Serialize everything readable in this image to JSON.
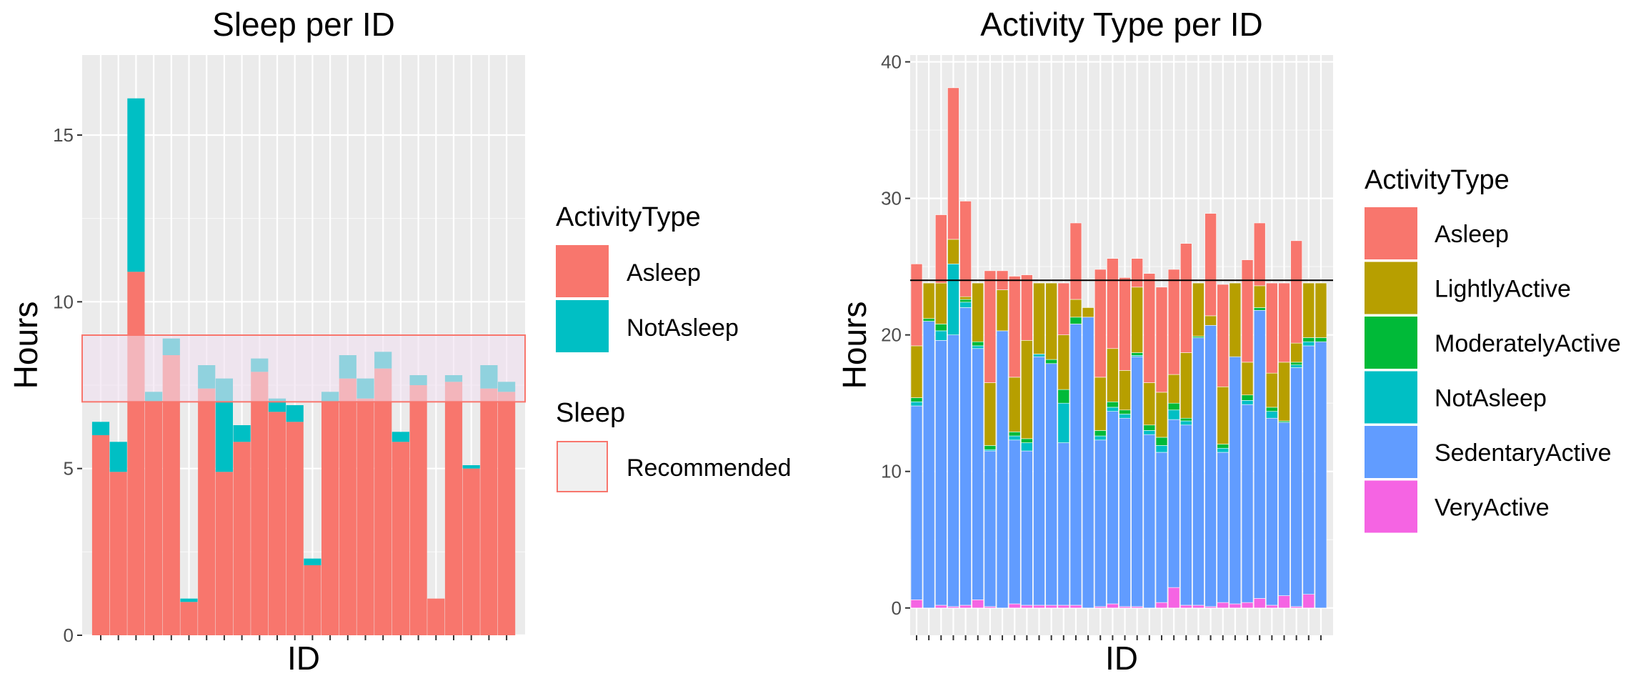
{
  "chart_data": [
    {
      "type": "bar",
      "stacked": true,
      "title": "Sleep per ID",
      "xlabel": "ID",
      "ylabel": "Hours",
      "ylim": [
        0,
        17.4
      ],
      "yticks": [
        0,
        5,
        10,
        15
      ],
      "x_tick_labels_shown": false,
      "grid": true,
      "legend_position": "right",
      "legend_title": "ActivityType",
      "series": [
        {
          "name": "Asleep",
          "color": "#F8766D",
          "values": [
            6.0,
            4.9,
            10.9,
            7.0,
            8.4,
            1.0,
            7.4,
            4.9,
            5.8,
            7.9,
            6.7,
            6.4,
            2.1,
            7.0,
            7.7,
            7.1,
            8.0,
            5.8,
            7.5,
            1.1,
            7.6,
            5.0,
            7.4,
            7.3
          ]
        },
        {
          "name": "NotAsleep",
          "color": "#00BFC4",
          "values": [
            0.4,
            0.9,
            5.2,
            0.3,
            0.5,
            0.1,
            0.7,
            2.8,
            0.5,
            0.4,
            0.4,
            0.5,
            0.2,
            0.3,
            0.7,
            0.6,
            0.5,
            0.3,
            0.3,
            0.0,
            0.2,
            0.1,
            0.7,
            0.3
          ]
        }
      ],
      "recommended_band": {
        "legend_title": "Sleep",
        "label": "Recommended",
        "ymin": 7,
        "ymax": 9,
        "fill": "#f0e0f0",
        "stroke": "#F8766D"
      }
    },
    {
      "type": "bar",
      "stacked": true,
      "title": "Activity Type per ID",
      "xlabel": "ID",
      "ylabel": "Hours",
      "ylim": [
        -2,
        40.5
      ],
      "yticks": [
        0,
        10,
        20,
        30,
        40
      ],
      "x_tick_labels_shown": false,
      "grid": true,
      "legend_position": "right",
      "legend_title": "ActivityType",
      "reference_line": 24,
      "stack_order_bottom_to_top": [
        "VeryActive",
        "SedentaryActive",
        "NotAsleep",
        "ModeratelyActive",
        "LightlyActive",
        "Asleep"
      ],
      "legend": [
        {
          "name": "Asleep",
          "color": "#F8766D"
        },
        {
          "name": "LightlyActive",
          "color": "#B79F00"
        },
        {
          "name": "ModeratelyActive",
          "color": "#00BA38"
        },
        {
          "name": "NotAsleep",
          "color": "#00BFC4"
        },
        {
          "name": "SedentaryActive",
          "color": "#619CFF"
        },
        {
          "name": "VeryActive",
          "color": "#F564E3"
        }
      ],
      "bars": [
        {
          "VeryActive": 0.6,
          "SedentaryActive": 14.2,
          "NotAsleep": 0.3,
          "ModeratelyActive": 0.3,
          "LightlyActive": 3.8,
          "Asleep": 6.0
        },
        {
          "VeryActive": 0.0,
          "SedentaryActive": 21.0,
          "NotAsleep": 0.0,
          "ModeratelyActive": 0.2,
          "LightlyActive": 2.6,
          "Asleep": 0.0
        },
        {
          "VeryActive": 0.2,
          "SedentaryActive": 19.4,
          "NotAsleep": 0.7,
          "ModeratelyActive": 0.5,
          "LightlyActive": 3.0,
          "Asleep": 5.0
        },
        {
          "VeryActive": 0.1,
          "SedentaryActive": 19.9,
          "NotAsleep": 5.2,
          "ModeratelyActive": 0.0,
          "LightlyActive": 1.8,
          "Asleep": 11.1
        },
        {
          "VeryActive": 0.2,
          "SedentaryActive": 21.8,
          "NotAsleep": 0.4,
          "ModeratelyActive": 0.2,
          "LightlyActive": 0.2,
          "Asleep": 7.0
        },
        {
          "VeryActive": 0.6,
          "SedentaryActive": 18.4,
          "NotAsleep": 0.2,
          "ModeratelyActive": 0.3,
          "LightlyActive": 4.3,
          "Asleep": 0.0
        },
        {
          "VeryActive": 0.1,
          "SedentaryActive": 11.4,
          "NotAsleep": 0.1,
          "ModeratelyActive": 0.3,
          "LightlyActive": 4.6,
          "Asleep": 8.2
        },
        {
          "VeryActive": 0.0,
          "SedentaryActive": 20.3,
          "NotAsleep": 0.0,
          "ModeratelyActive": 0.0,
          "LightlyActive": 3.0,
          "Asleep": 1.4
        },
        {
          "VeryActive": 0.3,
          "SedentaryActive": 12.0,
          "NotAsleep": 0.3,
          "ModeratelyActive": 0.3,
          "LightlyActive": 4.0,
          "Asleep": 7.4
        },
        {
          "VeryActive": 0.2,
          "SedentaryActive": 11.3,
          "NotAsleep": 0.6,
          "ModeratelyActive": 0.3,
          "LightlyActive": 7.2,
          "Asleep": 4.8
        },
        {
          "VeryActive": 0.2,
          "SedentaryActive": 18.2,
          "NotAsleep": 0.2,
          "ModeratelyActive": 0.0,
          "LightlyActive": 5.2,
          "Asleep": 0.0
        },
        {
          "VeryActive": 0.2,
          "SedentaryActive": 17.7,
          "NotAsleep": 0.0,
          "ModeratelyActive": 0.3,
          "LightlyActive": 5.6,
          "Asleep": 0.0
        },
        {
          "VeryActive": 0.2,
          "SedentaryActive": 11.9,
          "NotAsleep": 2.9,
          "ModeratelyActive": 1.0,
          "LightlyActive": 4.0,
          "Asleep": 3.8
        },
        {
          "VeryActive": 0.2,
          "SedentaryActive": 20.6,
          "NotAsleep": 0.0,
          "ModeratelyActive": 0.5,
          "LightlyActive": 1.3,
          "Asleep": 5.6
        },
        {
          "VeryActive": 0.0,
          "SedentaryActive": 21.3,
          "NotAsleep": 0.0,
          "ModeratelyActive": 0.0,
          "LightlyActive": 0.7,
          "Asleep": 0.0
        },
        {
          "VeryActive": 0.1,
          "SedentaryActive": 12.2,
          "NotAsleep": 0.3,
          "ModeratelyActive": 0.4,
          "LightlyActive": 3.9,
          "Asleep": 7.9
        },
        {
          "VeryActive": 0.3,
          "SedentaryActive": 14.1,
          "NotAsleep": 0.3,
          "ModeratelyActive": 0.4,
          "LightlyActive": 3.9,
          "Asleep": 6.6
        },
        {
          "VeryActive": 0.1,
          "SedentaryActive": 13.8,
          "NotAsleep": 0.3,
          "ModeratelyActive": 0.3,
          "LightlyActive": 2.9,
          "Asleep": 6.8
        },
        {
          "VeryActive": 0.1,
          "SedentaryActive": 18.3,
          "NotAsleep": 0.1,
          "ModeratelyActive": 0.2,
          "LightlyActive": 4.8,
          "Asleep": 2.1
        },
        {
          "VeryActive": 0.0,
          "SedentaryActive": 12.7,
          "NotAsleep": 0.3,
          "ModeratelyActive": 0.4,
          "LightlyActive": 3.1,
          "Asleep": 8.0
        },
        {
          "VeryActive": 0.4,
          "SedentaryActive": 11.0,
          "NotAsleep": 0.5,
          "ModeratelyActive": 0.6,
          "LightlyActive": 3.3,
          "Asleep": 7.7
        },
        {
          "VeryActive": 1.5,
          "SedentaryActive": 12.3,
          "NotAsleep": 0.7,
          "ModeratelyActive": 0.5,
          "LightlyActive": 2.1,
          "Asleep": 7.7
        },
        {
          "VeryActive": 0.2,
          "SedentaryActive": 13.2,
          "NotAsleep": 0.3,
          "ModeratelyActive": 0.2,
          "LightlyActive": 4.8,
          "Asleep": 8.0
        },
        {
          "VeryActive": 0.2,
          "SedentaryActive": 19.6,
          "NotAsleep": 0.0,
          "ModeratelyActive": 0.1,
          "LightlyActive": 3.9,
          "Asleep": 0.0
        },
        {
          "VeryActive": 0.1,
          "SedentaryActive": 20.6,
          "NotAsleep": 0.0,
          "ModeratelyActive": 0.0,
          "LightlyActive": 0.7,
          "Asleep": 7.5
        },
        {
          "VeryActive": 0.4,
          "SedentaryActive": 11.0,
          "NotAsleep": 0.3,
          "ModeratelyActive": 0.3,
          "LightlyActive": 4.2,
          "Asleep": 7.5
        },
        {
          "VeryActive": 0.3,
          "SedentaryActive": 18.1,
          "NotAsleep": 0.0,
          "ModeratelyActive": 0.0,
          "LightlyActive": 5.4,
          "Asleep": 0.0
        },
        {
          "VeryActive": 0.4,
          "SedentaryActive": 14.5,
          "NotAsleep": 0.3,
          "ModeratelyActive": 0.4,
          "LightlyActive": 2.4,
          "Asleep": 7.5
        },
        {
          "VeryActive": 0.7,
          "SedentaryActive": 21.1,
          "NotAsleep": 0.0,
          "ModeratelyActive": 0.2,
          "LightlyActive": 1.6,
          "Asleep": 4.6
        },
        {
          "VeryActive": 0.2,
          "SedentaryActive": 13.7,
          "NotAsleep": 0.5,
          "ModeratelyActive": 0.3,
          "LightlyActive": 2.5,
          "Asleep": 6.6
        },
        {
          "VeryActive": 0.9,
          "SedentaryActive": 12.7,
          "NotAsleep": 0.0,
          "ModeratelyActive": 0.1,
          "LightlyActive": 4.3,
          "Asleep": 5.8
        },
        {
          "VeryActive": 0.1,
          "SedentaryActive": 17.5,
          "NotAsleep": 0.2,
          "ModeratelyActive": 0.2,
          "LightlyActive": 1.4,
          "Asleep": 7.5
        },
        {
          "VeryActive": 1.0,
          "SedentaryActive": 18.2,
          "NotAsleep": 0.3,
          "ModeratelyActive": 0.3,
          "LightlyActive": 4.0,
          "Asleep": 0.0
        },
        {
          "VeryActive": 0.0,
          "SedentaryActive": 19.5,
          "NotAsleep": 0.0,
          "ModeratelyActive": 0.3,
          "LightlyActive": 4.0,
          "Asleep": 0.0
        }
      ]
    }
  ]
}
